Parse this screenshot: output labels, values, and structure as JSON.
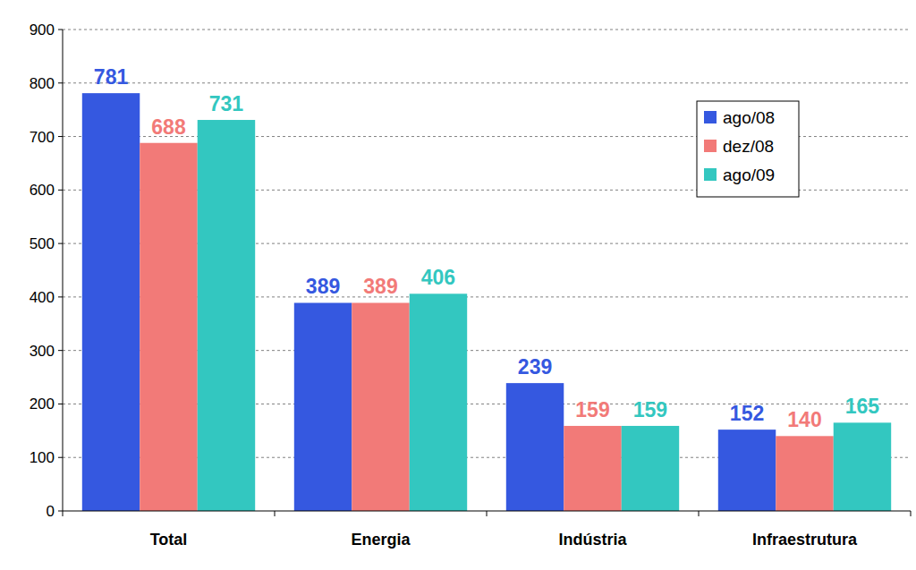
{
  "chart_data": {
    "type": "bar",
    "categories": [
      "Total",
      "Energia",
      "Indústria",
      "Infraestrutura"
    ],
    "series": [
      {
        "name": "ago/08",
        "color": "#3558e0",
        "values": [
          781,
          389,
          239,
          152
        ]
      },
      {
        "name": "dez/08",
        "color": "#f27a78",
        "values": [
          688,
          389,
          159,
          140
        ]
      },
      {
        "name": "ago/09",
        "color": "#33c7c0",
        "values": [
          731,
          406,
          159,
          165
        ]
      }
    ],
    "ylim": [
      0,
      900
    ],
    "yticks": [
      0,
      100,
      200,
      300,
      400,
      500,
      600,
      700,
      800,
      900
    ],
    "grid": true,
    "legend": "upper right",
    "data_labels": true
  }
}
